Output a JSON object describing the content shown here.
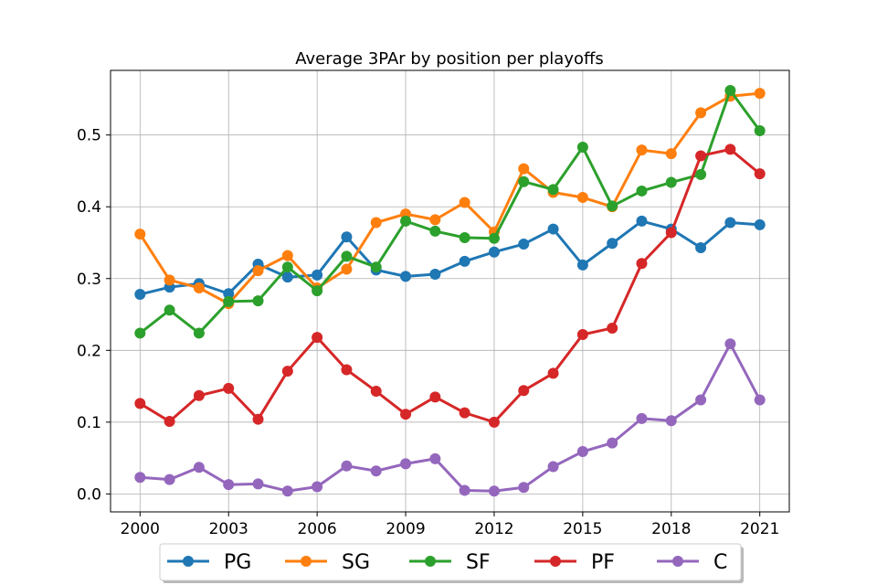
{
  "chart_data": {
    "type": "line",
    "title": "Average 3PAr by position per playoffs",
    "xlabel": "",
    "ylabel": "",
    "x": [
      2000,
      2001,
      2002,
      2003,
      2004,
      2005,
      2006,
      2007,
      2008,
      2009,
      2010,
      2011,
      2012,
      2013,
      2014,
      2015,
      2016,
      2017,
      2018,
      2019,
      2020,
      2021
    ],
    "xlim": [
      1999.0,
      2022.0
    ],
    "ylim": [
      -0.025,
      0.59
    ],
    "xticks": [
      2000,
      2003,
      2006,
      2009,
      2012,
      2015,
      2018,
      2021
    ],
    "yticks": [
      0.0,
      0.1,
      0.2,
      0.3,
      0.4,
      0.5
    ],
    "ytick_labels": [
      "0.0",
      "0.1",
      "0.2",
      "0.3",
      "0.4",
      "0.5"
    ],
    "grid": true,
    "legend_position": "bottom-center",
    "series": [
      {
        "name": "PG",
        "color": "#1f77b4",
        "values": [
          0.278,
          0.288,
          0.293,
          0.279,
          0.32,
          0.302,
          0.305,
          0.358,
          0.312,
          0.303,
          0.306,
          0.324,
          0.337,
          0.348,
          0.369,
          0.319,
          0.349,
          0.38,
          0.369,
          0.343,
          0.378,
          0.375
        ]
      },
      {
        "name": "SG",
        "color": "#ff7f0e",
        "values": [
          0.362,
          0.298,
          0.287,
          0.265,
          0.311,
          0.332,
          0.287,
          0.313,
          0.378,
          0.39,
          0.382,
          0.406,
          0.365,
          0.453,
          0.42,
          0.413,
          0.4,
          0.479,
          0.474,
          0.531,
          0.554,
          0.558
        ]
      },
      {
        "name": "SF",
        "color": "#2ca02c",
        "values": [
          0.224,
          0.256,
          0.224,
          0.268,
          0.269,
          0.316,
          0.283,
          0.331,
          0.316,
          0.38,
          0.366,
          0.357,
          0.356,
          0.435,
          0.424,
          0.483,
          0.401,
          0.422,
          0.434,
          0.445,
          0.562,
          0.506
        ]
      },
      {
        "name": "PF",
        "color": "#d62728",
        "values": [
          0.126,
          0.101,
          0.137,
          0.147,
          0.104,
          0.171,
          0.218,
          0.173,
          0.143,
          0.111,
          0.135,
          0.113,
          0.1,
          0.144,
          0.168,
          0.222,
          0.231,
          0.321,
          0.364,
          0.471,
          0.48,
          0.446
        ]
      },
      {
        "name": "C",
        "color": "#9467bd",
        "values": [
          0.023,
          0.02,
          0.037,
          0.013,
          0.014,
          0.004,
          0.01,
          0.039,
          0.032,
          0.042,
          0.049,
          0.005,
          0.004,
          0.009,
          0.038,
          0.059,
          0.071,
          0.105,
          0.102,
          0.131,
          0.209,
          0.131
        ]
      }
    ]
  }
}
